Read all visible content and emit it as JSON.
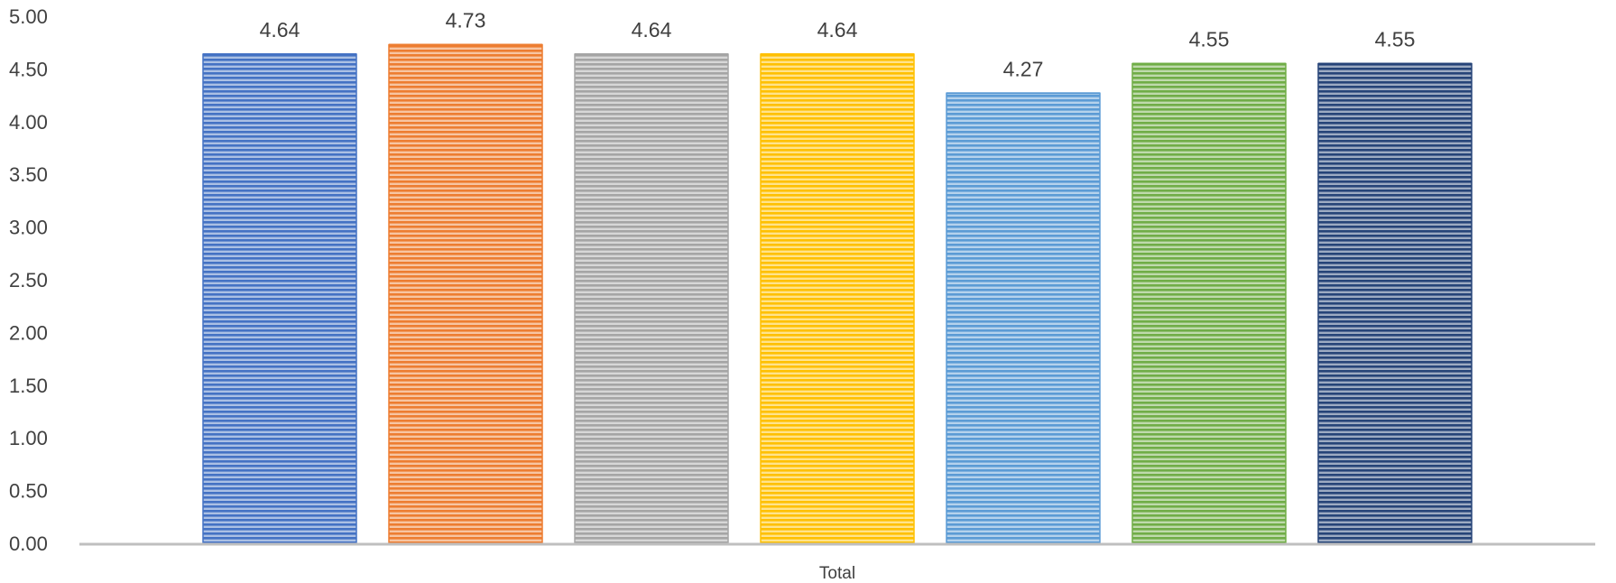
{
  "chart_data": {
    "type": "bar",
    "categories": [
      "Total"
    ],
    "series": [
      {
        "values": [
          4.64
        ],
        "color": "#4472C4"
      },
      {
        "values": [
          4.73
        ],
        "color": "#ED7D31"
      },
      {
        "values": [
          4.64
        ],
        "color": "#A5A5A5"
      },
      {
        "values": [
          4.64
        ],
        "color": "#FFC000"
      },
      {
        "values": [
          4.27
        ],
        "color": "#5B9BD5"
      },
      {
        "values": [
          4.55
        ],
        "color": "#70AD47"
      },
      {
        "values": [
          4.55
        ],
        "color": "#264478"
      }
    ],
    "value_labels": [
      "4.64",
      "4.73",
      "4.64",
      "4.64",
      "4.27",
      "4.55",
      "4.55"
    ],
    "y_ticks": [
      "0.00",
      "0.50",
      "1.00",
      "1.50",
      "2.00",
      "2.50",
      "3.00",
      "3.50",
      "4.00",
      "4.50",
      "5.00"
    ],
    "ylim": [
      0,
      5
    ],
    "title": "",
    "xlabel": "",
    "ylabel": "",
    "grid": false,
    "bar_fill_pattern": "horizontal-stripes",
    "axis_color": "#BFBFBF"
  }
}
